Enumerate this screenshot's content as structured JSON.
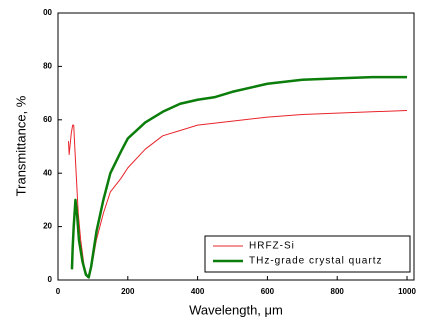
{
  "chart_data": {
    "type": "line",
    "x_label": "Wavelength, μm",
    "y_label": "Transmittance, %",
    "xlim": [
      0,
      1020
    ],
    "ylim": [
      0,
      100
    ],
    "xticks": [
      0,
      200,
      400,
      600,
      800,
      1000
    ],
    "yticks": [
      0,
      20,
      40,
      60,
      80,
      {
        "value": 100,
        "label": "00"
      }
    ],
    "grid": false,
    "legend": "lower right",
    "series": [
      {
        "name": "HRFZ-Si",
        "color": "#e8242b",
        "line_width": 1,
        "x": [
          30,
          32,
          38,
          42,
          45,
          48,
          52,
          58,
          65,
          75,
          85,
          95,
          110,
          130,
          150,
          180,
          200,
          250,
          300,
          350,
          400,
          500,
          600,
          700,
          800,
          900,
          1000
        ],
        "values": [
          52,
          47,
          55,
          58,
          58,
          50,
          40,
          25,
          15,
          5,
          1,
          4,
          15,
          25,
          33,
          38,
          42,
          49,
          54,
          56,
          58,
          59.5,
          61,
          62,
          62.5,
          63,
          63.5
        ]
      },
      {
        "name": "THz-grade crystal quartz",
        "color": "#0a7d0a",
        "line_width": 2.5,
        "x": [
          40,
          42,
          45,
          50,
          55,
          60,
          70,
          80,
          88,
          95,
          110,
          130,
          150,
          180,
          200,
          250,
          300,
          350,
          400,
          450,
          500,
          600,
          700,
          800,
          900,
          1000
        ],
        "values": [
          4,
          12,
          20,
          30,
          24,
          15,
          7,
          2,
          1,
          5,
          18,
          30,
          40,
          48,
          53,
          59,
          63,
          66,
          67.5,
          68.5,
          70.5,
          73.5,
          75,
          75.5,
          76,
          76
        ]
      }
    ]
  }
}
